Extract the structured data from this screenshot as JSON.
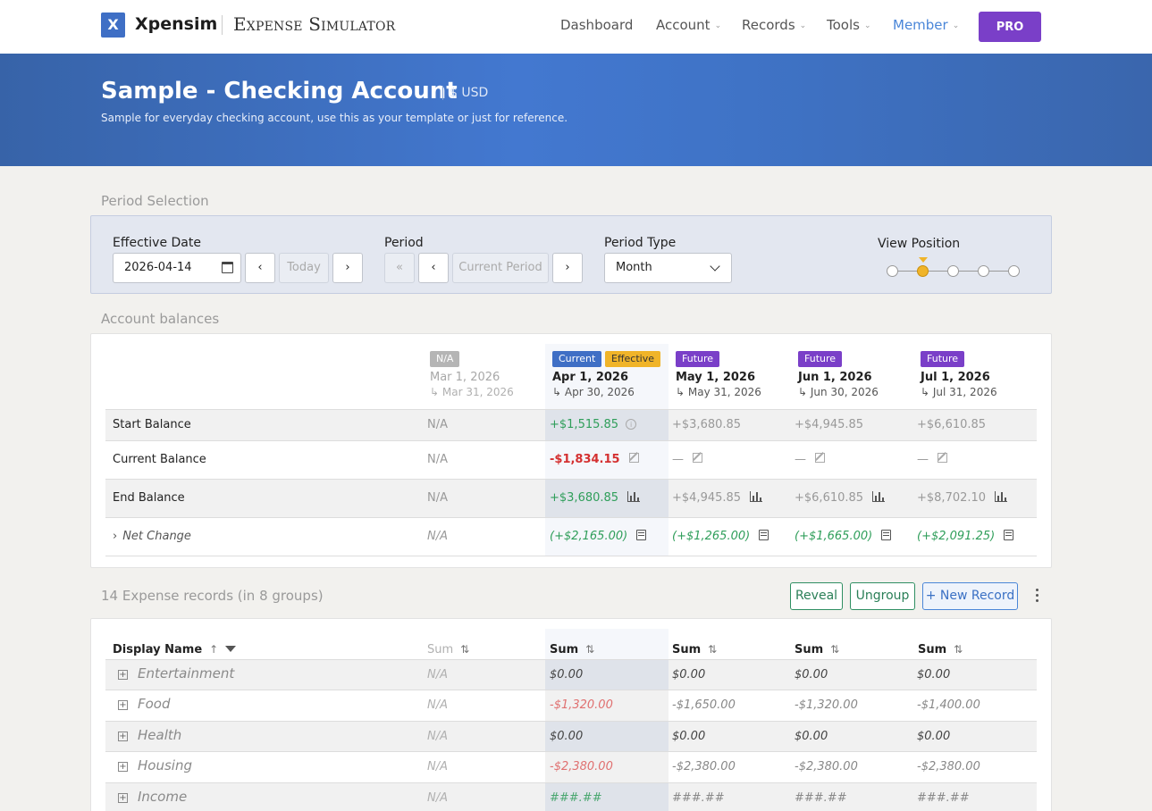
{
  "nav": {
    "logo_letter": "X",
    "brand": "Xpensim",
    "brand_sub": "Expense Simulator",
    "items": [
      {
        "label": "Dashboard",
        "caret": ""
      },
      {
        "label": "Account",
        "caret": "⌄"
      },
      {
        "label": "Records",
        "caret": "⌄"
      },
      {
        "label": "Tools",
        "caret": "⌄"
      },
      {
        "label": "Member",
        "caret": "⌄"
      }
    ],
    "pro_label": "PRO"
  },
  "hero": {
    "title": "Sample - Checking Account",
    "currency": "$ USD",
    "description": "Sample for everyday checking account, use this as your template or just for reference."
  },
  "period": {
    "section_title": "Period Selection",
    "effective_date_label": "Effective Date",
    "effective_date_value": "2026-04-14",
    "prev": "‹",
    "next": "›",
    "first": "«",
    "today_label": "Today",
    "period_label": "Period",
    "current_period_label": "Current Period",
    "period_type_label": "Period Type",
    "period_type_value": "Month",
    "view_position_label": "View Position",
    "view_position_selected": 2,
    "view_position_count": 5
  },
  "balances": {
    "section_title": "Account balances",
    "columns": [
      {
        "badges": [
          "N/A"
        ],
        "start": "Mar 1, 2026",
        "end": "↳ Mar 31, 2026"
      },
      {
        "badges": [
          "Current",
          "Effective"
        ],
        "start": "Apr 1, 2026",
        "end": "↳ Apr 30, 2026"
      },
      {
        "badges": [
          "Future"
        ],
        "start": "May 1, 2026",
        "end": "↳ May 31, 2026"
      },
      {
        "badges": [
          "Future"
        ],
        "start": "Jun 1, 2026",
        "end": "↳ Jun 30, 2026"
      },
      {
        "badges": [
          "Future"
        ],
        "start": "Jul 1, 2026",
        "end": "↳ Jul 31, 2026"
      }
    ],
    "rows": [
      {
        "label": "Start Balance",
        "values": [
          "N/A",
          "+$1,515.85",
          "+$3,680.85",
          "+$4,945.85",
          "+$6,610.85"
        ]
      },
      {
        "label": "Current Balance",
        "values": [
          "N/A",
          "-$1,834.15",
          "—",
          "—",
          "—"
        ]
      },
      {
        "label": "End Balance",
        "values": [
          "N/A",
          "+$3,680.85",
          "+$4,945.85",
          "+$6,610.85",
          "+$8,702.10"
        ]
      },
      {
        "label": "Net Change",
        "chevron": "›",
        "values": [
          "N/A",
          "(+$2,165.00)",
          "(+$1,265.00)",
          "(+$1,665.00)",
          "(+$2,091.25)"
        ]
      }
    ],
    "info_glyph": "i"
  },
  "records": {
    "section_title": "14 Expense records (in 8 groups)",
    "reveal_label": "Reveal",
    "ungroup_label": "Ungroup",
    "new_record_label": "+ New Record",
    "display_name_header": "Display Name",
    "sort_up": "↑",
    "sum_header": "Sum",
    "sort_both": "⇅",
    "expand_glyph": "+",
    "groups": [
      {
        "name": "Entertainment",
        "values": [
          "N/A",
          "$0.00",
          "$0.00",
          "$0.00",
          "$0.00"
        ]
      },
      {
        "name": "Food",
        "values": [
          "N/A",
          "-$1,320.00",
          "-$1,650.00",
          "-$1,320.00",
          "-$1,400.00"
        ]
      },
      {
        "name": "Health",
        "values": [
          "N/A",
          "$0.00",
          "$0.00",
          "$0.00",
          "$0.00"
        ]
      },
      {
        "name": "Housing",
        "values": [
          "N/A",
          "-$2,380.00",
          "-$2,380.00",
          "-$2,380.00",
          "-$2,380.00"
        ]
      },
      {
        "name": "Income",
        "values": [
          "N/A",
          "###.##",
          "###.##",
          "###.##",
          "###.##"
        ]
      }
    ]
  },
  "colors": {
    "primary": "#3f6fc5",
    "pro": "#7a3fc8",
    "effective": "#f0b429",
    "positive": "#2f9e5a",
    "negative": "#d43030"
  }
}
